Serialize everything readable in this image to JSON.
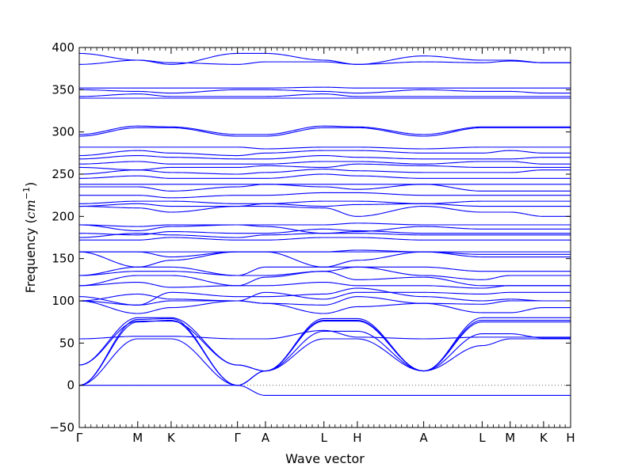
{
  "chart_data": {
    "type": "line",
    "title": "",
    "xlabel": "Wave vector",
    "ylabel_prefix": "Frequency (",
    "ylabel_unit": "cm",
    "ylabel_exponent": "−1",
    "ylabel_suffix": ")",
    "ylim": [
      -50,
      400
    ],
    "yticks": [
      -50,
      0,
      50,
      100,
      150,
      200,
      250,
      300,
      350,
      400
    ],
    "ytick_labels": [
      "−50",
      "0",
      "50",
      "100",
      "150",
      "200",
      "250",
      "300",
      "350",
      "400"
    ],
    "zero_line": true,
    "legend": "none",
    "line_color": "#0000ff",
    "high_symmetry_points": [
      {
        "label": "Γ",
        "x": 0
      },
      {
        "label": "M",
        "x": 0.119
      },
      {
        "label": "K",
        "x": 0.187
      },
      {
        "label": "Γ",
        "x": 0.322
      },
      {
        "label": "A",
        "x": 0.379
      },
      {
        "label": "L",
        "x": 0.498
      },
      {
        "label": "H",
        "x": 0.566
      },
      {
        "label": "A",
        "x": 0.701
      },
      {
        "label": "L",
        "x": 0.82
      },
      {
        "label": "M",
        "x": 0.877
      },
      {
        "label": "K",
        "x": 0.945
      },
      {
        "label": "H",
        "x": 1.0
      }
    ],
    "xlim": [
      0,
      1
    ],
    "sample_x": [
      0,
      0.119,
      0.187,
      0.322,
      0.379,
      0.498,
      0.566,
      0.701,
      0.82,
      0.877,
      0.945,
      1.0
    ],
    "series": [
      {
        "values": [
          0,
          55,
          55,
          0,
          17,
          55,
          55,
          17,
          47,
          55,
          55,
          55
        ]
      },
      {
        "values": [
          0,
          75,
          77,
          0,
          17,
          77,
          77,
          17,
          77,
          77,
          77,
          77
        ]
      },
      {
        "values": [
          0,
          78,
          79,
          0,
          17,
          79,
          79,
          17,
          80,
          80,
          80,
          80
        ]
      },
      {
        "values": [
          24,
          76,
          76,
          24,
          17,
          64,
          64,
          17,
          61,
          61,
          56,
          56
        ]
      },
      {
        "values": [
          24,
          80,
          80,
          24,
          17,
          76,
          76,
          17,
          75,
          75,
          75,
          75
        ]
      },
      {
        "values": [
          55,
          58,
          58,
          55,
          55,
          65,
          57,
          55,
          57,
          57,
          57,
          57
        ]
      },
      {
        "values": [
          0,
          0,
          0,
          0,
          -12,
          -12,
          -12,
          -12,
          -12,
          -12,
          -12,
          -12
        ]
      },
      {
        "values": [
          100,
          85,
          92,
          100,
          97,
          85,
          93,
          97,
          86,
          86,
          92,
          92
        ]
      },
      {
        "values": [
          100,
          95,
          100,
          100,
          97,
          95,
          105,
          97,
          96,
          100,
          100,
          100
        ]
      },
      {
        "values": [
          100,
          108,
          102,
          100,
          110,
          102,
          110,
          110,
          108,
          110,
          110,
          110
        ]
      },
      {
        "values": [
          105,
          95,
          110,
          105,
          105,
          108,
          115,
          105,
          100,
          102,
          100,
          100
        ]
      },
      {
        "values": [
          118,
          122,
          116,
          118,
          118,
          122,
          118,
          118,
          115,
          118,
          118,
          118
        ]
      },
      {
        "values": [
          118,
          130,
          130,
          118,
          128,
          135,
          125,
          128,
          118,
          118,
          118,
          118
        ]
      },
      {
        "values": [
          130,
          140,
          140,
          130,
          130,
          135,
          140,
          130,
          125,
          130,
          130,
          130
        ]
      },
      {
        "values": [
          130,
          135,
          135,
          130,
          140,
          140,
          140,
          140,
          135,
          135,
          135,
          135
        ]
      },
      {
        "values": [
          158,
          140,
          148,
          158,
          158,
          140,
          148,
          158,
          152,
          152,
          152,
          152
        ]
      },
      {
        "values": [
          158,
          158,
          152,
          158,
          158,
          158,
          158,
          158,
          155,
          155,
          155,
          155
        ]
      },
      {
        "values": [
          158,
          158,
          158,
          158,
          158,
          158,
          160,
          158,
          158,
          158,
          158,
          158
        ]
      },
      {
        "values": [
          172,
          172,
          175,
          172,
          172,
          175,
          175,
          172,
          172,
          172,
          172,
          172
        ]
      },
      {
        "values": [
          175,
          180,
          178,
          175,
          178,
          180,
          180,
          178,
          178,
          178,
          178,
          178
        ]
      },
      {
        "values": [
          180,
          178,
          182,
          180,
          180,
          185,
          183,
          180,
          180,
          180,
          180,
          180
        ]
      },
      {
        "values": [
          190,
          183,
          188,
          190,
          188,
          180,
          182,
          188,
          185,
          185,
          185,
          185
        ]
      },
      {
        "values": [
          190,
          188,
          190,
          190,
          190,
          190,
          192,
          190,
          190,
          190,
          190,
          190
        ]
      },
      {
        "values": [
          212,
          210,
          205,
          212,
          212,
          210,
          200,
          212,
          205,
          205,
          200,
          200
        ]
      },
      {
        "values": [
          212,
          215,
          212,
          212,
          215,
          212,
          214,
          215,
          212,
          212,
          212,
          212
        ]
      },
      {
        "values": [
          215,
          218,
          218,
          215,
          215,
          218,
          218,
          215,
          218,
          218,
          218,
          218
        ]
      },
      {
        "values": [
          225,
          225,
          222,
          225,
          225,
          228,
          228,
          225,
          225,
          225,
          225,
          225
        ]
      },
      {
        "values": [
          235,
          235,
          230,
          235,
          238,
          235,
          232,
          238,
          230,
          230,
          230,
          230
        ]
      },
      {
        "values": [
          238,
          238,
          238,
          238,
          238,
          238,
          238,
          238,
          238,
          238,
          238,
          238
        ]
      },
      {
        "values": [
          245,
          248,
          245,
          245,
          245,
          250,
          248,
          245,
          245,
          245,
          245,
          245
        ]
      },
      {
        "values": [
          250,
          255,
          252,
          250,
          252,
          256,
          254,
          252,
          252,
          252,
          255,
          255
        ]
      },
      {
        "values": [
          258,
          255,
          258,
          258,
          260,
          258,
          262,
          260,
          258,
          258,
          258,
          258
        ]
      },
      {
        "values": [
          262,
          265,
          262,
          262,
          262,
          265,
          265,
          262,
          265,
          265,
          262,
          262
        ]
      },
      {
        "values": [
          268,
          272,
          270,
          268,
          268,
          272,
          270,
          268,
          268,
          268,
          270,
          270
        ]
      },
      {
        "values": [
          272,
          278,
          275,
          272,
          275,
          278,
          278,
          275,
          275,
          278,
          275,
          275
        ]
      },
      {
        "values": [
          282,
          282,
          282,
          282,
          280,
          282,
          282,
          280,
          282,
          282,
          282,
          282
        ]
      },
      {
        "values": [
          295,
          305,
          305,
          295,
          295,
          305,
          305,
          295,
          305,
          305,
          305,
          305
        ]
      },
      {
        "values": [
          297,
          307,
          306,
          297,
          297,
          307,
          306,
          297,
          306,
          306,
          306,
          306
        ]
      },
      {
        "values": [
          340,
          340,
          340,
          340,
          340,
          340,
          340,
          340,
          340,
          340,
          340,
          340
        ]
      },
      {
        "values": [
          342,
          345,
          342,
          342,
          342,
          345,
          342,
          342,
          342,
          342,
          342,
          342
        ]
      },
      {
        "values": [
          350,
          348,
          346,
          350,
          350,
          348,
          346,
          350,
          348,
          348,
          346,
          346
        ]
      },
      {
        "values": [
          352,
          352,
          352,
          352,
          352,
          353,
          352,
          352,
          352,
          352,
          352,
          352
        ]
      },
      {
        "values": [
          380,
          385,
          382,
          380,
          383,
          383,
          380,
          383,
          382,
          384,
          382,
          382
        ]
      },
      {
        "values": [
          393,
          385,
          380,
          393,
          393,
          385,
          380,
          390,
          385,
          385,
          382,
          382
        ]
      }
    ]
  }
}
